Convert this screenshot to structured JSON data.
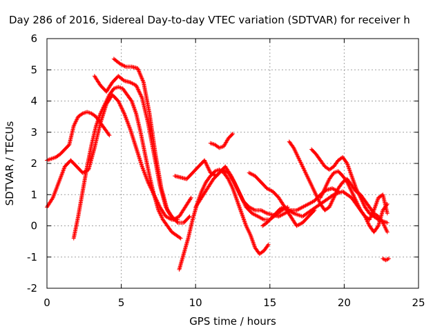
{
  "chart_data": {
    "type": "scatter",
    "title": "Day 286 of 2016, Sidereal Day-to-day VTEC variation (SDTVAR) for receiver h",
    "xlabel": "GPS time / hours",
    "ylabel": "SDTVAR / TECUs",
    "xlim": [
      0,
      25
    ],
    "ylim": [
      -2,
      6
    ],
    "xticks": [
      "0",
      "5",
      "10",
      "15",
      "20",
      "25"
    ],
    "yticks": [
      "-2",
      "-1",
      "0",
      "1",
      "2",
      "3",
      "4",
      "5",
      "6"
    ],
    "grid": true,
    "marker": "+",
    "color": "#ff0000",
    "series": [
      {
        "x": [
          0.0,
          0.3,
          0.6,
          0.9,
          1.2,
          1.5,
          1.8,
          2.1,
          2.4,
          2.7,
          3.0,
          3.3,
          3.6,
          3.9,
          4.2
        ],
        "y": [
          2.1,
          2.15,
          2.2,
          2.3,
          2.45,
          2.6,
          3.2,
          3.5,
          3.6,
          3.65,
          3.6,
          3.5,
          3.3,
          3.1,
          2.9
        ]
      },
      {
        "x": [
          0.0,
          0.4,
          0.8,
          1.2,
          1.6,
          2.0,
          2.4,
          2.8,
          3.2,
          3.6,
          4.0,
          4.4,
          4.8,
          5.2,
          5.6,
          6.0,
          6.4,
          6.8,
          7.2,
          7.6,
          8.0,
          8.4,
          8.8
        ],
        "y": [
          0.6,
          0.9,
          1.4,
          1.9,
          2.1,
          1.9,
          1.7,
          1.8,
          2.5,
          3.3,
          3.9,
          4.2,
          4.0,
          3.6,
          3.1,
          2.5,
          1.9,
          1.4,
          1.0,
          0.6,
          0.3,
          0.2,
          0.2
        ]
      },
      {
        "x": [
          1.8,
          2.1,
          2.4,
          2.7,
          3.0,
          3.3,
          3.6,
          3.9,
          4.2,
          4.5,
          4.8,
          5.1,
          5.4,
          5.7,
          6.0,
          6.3,
          6.6,
          6.9,
          7.2,
          7.5,
          7.8,
          8.1,
          8.4,
          8.7,
          9.0
        ],
        "y": [
          -0.4,
          0.3,
          1.1,
          1.9,
          2.6,
          3.2,
          3.6,
          3.9,
          4.2,
          4.4,
          4.45,
          4.4,
          4.2,
          4.0,
          3.6,
          3.0,
          2.3,
          1.6,
          1.0,
          0.5,
          0.2,
          0.0,
          -0.2,
          -0.3,
          -0.4
        ]
      },
      {
        "x": [
          3.2,
          3.6,
          4.0,
          4.4,
          4.8,
          5.2,
          5.6,
          6.0,
          6.4,
          6.8,
          7.2,
          7.6,
          8.0,
          8.4,
          8.8,
          9.2,
          9.6
        ],
        "y": [
          4.8,
          4.5,
          4.3,
          4.6,
          4.8,
          4.65,
          4.6,
          4.5,
          4.1,
          3.3,
          2.3,
          1.3,
          0.6,
          0.3,
          0.1,
          0.1,
          0.3
        ]
      },
      {
        "x": [
          4.5,
          4.9,
          5.3,
          5.7,
          6.1,
          6.5,
          6.9,
          7.3,
          7.7,
          8.1,
          8.5,
          8.9,
          9.3,
          9.7
        ],
        "y": [
          5.35,
          5.2,
          5.1,
          5.1,
          5.05,
          4.6,
          3.6,
          2.3,
          1.2,
          0.5,
          0.2,
          0.3,
          0.6,
          0.9
        ]
      },
      {
        "x": [
          8.9,
          9.2,
          9.5,
          9.8,
          10.1,
          10.4,
          10.7,
          11.0,
          11.3,
          11.6,
          11.9,
          12.2,
          12.5,
          12.8,
          13.1,
          13.4,
          13.7,
          14.0,
          14.3,
          14.6,
          14.9
        ],
        "y": [
          -1.4,
          -0.9,
          -0.4,
          0.2,
          0.7,
          1.1,
          1.4,
          1.6,
          1.75,
          1.8,
          1.7,
          1.5,
          1.2,
          0.8,
          0.4,
          0.0,
          -0.3,
          -0.7,
          -0.9,
          -0.8,
          -0.6
        ]
      },
      {
        "x": [
          8.6,
          9.0,
          9.4,
          9.8,
          10.2,
          10.6,
          11.0,
          11.4,
          11.8,
          12.2,
          12.6,
          13.0,
          13.4,
          13.8,
          14.2,
          14.6,
          15.0,
          15.4,
          15.8,
          16.2
        ],
        "y": [
          1.6,
          1.55,
          1.5,
          1.7,
          1.9,
          2.1,
          1.7,
          1.6,
          1.8,
          1.7,
          1.4,
          1.0,
          0.6,
          0.4,
          0.3,
          0.2,
          0.2,
          0.35,
          0.5,
          0.6
        ]
      },
      {
        "x": [
          10.0,
          10.4,
          10.8,
          11.2,
          11.6,
          12.0,
          12.4,
          12.8,
          13.2,
          13.6,
          14.0,
          14.4,
          14.8,
          15.2,
          15.6,
          16.0,
          16.4,
          16.8,
          17.2,
          17.6,
          18.0,
          18.4,
          18.8,
          19.2,
          19.6
        ],
        "y": [
          0.6,
          0.9,
          1.2,
          1.5,
          1.7,
          1.9,
          1.6,
          1.2,
          0.8,
          0.6,
          0.5,
          0.5,
          0.4,
          0.35,
          0.3,
          0.4,
          0.5,
          0.5,
          0.6,
          0.7,
          0.8,
          1.0,
          1.15,
          1.2,
          1.1
        ]
      },
      {
        "x": [
          11.0,
          11.3,
          11.6,
          11.9,
          12.2,
          12.5
        ],
        "y": [
          2.65,
          2.6,
          2.5,
          2.55,
          2.8,
          2.95
        ]
      },
      {
        "x": [
          13.6,
          14.0,
          14.4,
          14.8,
          15.2,
          15.6,
          16.0,
          16.4,
          16.8,
          17.2,
          17.6,
          18.0
        ],
        "y": [
          1.7,
          1.6,
          1.4,
          1.2,
          1.1,
          0.9,
          0.6,
          0.3,
          0.0,
          0.1,
          0.3,
          0.5
        ]
      },
      {
        "x": [
          16.3,
          16.6,
          16.9,
          17.2,
          17.5,
          17.8,
          18.1,
          18.4,
          18.7,
          19.0,
          19.3,
          19.6,
          19.9,
          20.2,
          20.5,
          20.8,
          21.1,
          21.4,
          21.7,
          22.0,
          22.3,
          22.6,
          22.9
        ],
        "y": [
          2.7,
          2.5,
          2.2,
          1.9,
          1.6,
          1.3,
          1.0,
          0.7,
          0.5,
          0.6,
          0.9,
          1.2,
          1.4,
          1.5,
          1.3,
          1.1,
          1.0,
          0.8,
          0.6,
          0.4,
          0.3,
          0.1,
          -0.2
        ]
      },
      {
        "x": [
          17.8,
          18.1,
          18.4,
          18.7,
          19.0,
          19.3,
          19.6,
          19.9,
          20.2,
          20.5,
          20.8,
          21.1,
          21.4,
          21.7,
          22.0,
          22.3,
          22.6,
          22.9
        ],
        "y": [
          2.45,
          2.3,
          2.1,
          1.9,
          1.8,
          1.9,
          2.1,
          2.2,
          2.0,
          1.6,
          1.2,
          0.9,
          0.6,
          0.4,
          0.3,
          0.2,
          0.15,
          0.1
        ]
      },
      {
        "x": [
          18.4,
          18.7,
          19.0,
          19.3,
          19.6,
          19.9,
          20.2,
          20.5,
          20.8,
          21.1,
          21.4,
          21.7,
          22.0,
          22.3,
          22.6,
          22.9
        ],
        "y": [
          0.9,
          1.2,
          1.5,
          1.7,
          1.75,
          1.6,
          1.4,
          1.1,
          0.8,
          0.5,
          0.3,
          0.2,
          0.5,
          0.9,
          1.0,
          0.4
        ]
      },
      {
        "x": [
          14.5,
          14.8,
          15.1,
          15.4,
          15.7,
          16.0,
          16.3,
          16.6,
          16.9,
          17.2,
          17.5,
          17.8,
          18.1,
          18.4,
          18.7,
          19.0,
          19.3,
          19.6,
          19.9,
          20.2,
          20.5,
          20.8,
          21.1,
          21.4,
          21.7,
          22.0,
          22.3,
          22.6,
          22.9
        ],
        "y": [
          0.0,
          0.1,
          0.25,
          0.4,
          0.55,
          0.6,
          0.5,
          0.4,
          0.35,
          0.3,
          0.4,
          0.5,
          0.6,
          0.7,
          0.8,
          0.9,
          1.0,
          1.05,
          1.1,
          1.0,
          0.9,
          0.7,
          0.5,
          0.3,
          0.0,
          -0.2,
          0.0,
          0.5,
          0.7
        ]
      },
      {
        "x": [
          22.6,
          22.8,
          23.0
        ],
        "y": [
          -1.05,
          -1.1,
          -1.05
        ]
      }
    ]
  }
}
